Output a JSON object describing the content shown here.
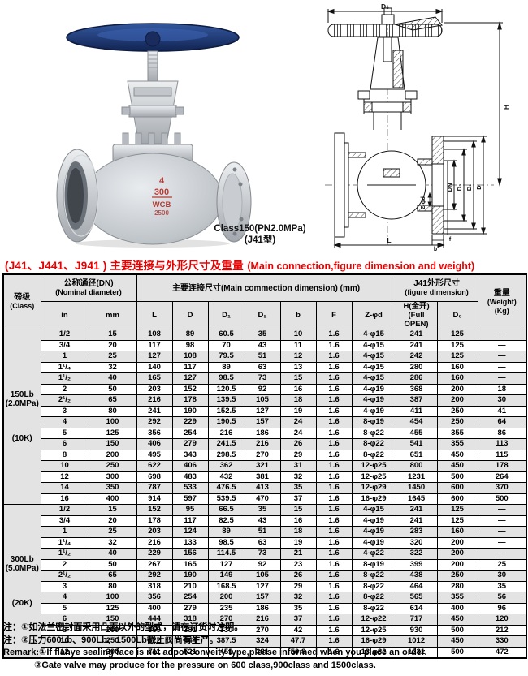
{
  "colors": {
    "title_red": "#e80000",
    "stripe_gray": "#e3e3e3",
    "handwheel_blue": "#1d3a7d",
    "marking_red": "#b93b34"
  },
  "images": {
    "caption_line1": "Class150(PN2.0MPa)",
    "caption_line2": "(J41型)",
    "valve_markings": [
      "4",
      "300",
      "WCB",
      "2500"
    ],
    "drawing_labels": {
      "d0": "D₀",
      "h": "H",
      "l": "L",
      "dn": "DN",
      "d2": "D₂",
      "d1": "D₁",
      "d": "D",
      "zfd": "Z-φd",
      "b": "b",
      "f": "f"
    }
  },
  "title": {
    "cn": "(J41、J441、J941 )  主要连接与外形尺寸及重量",
    "en": "(Main connection,figure dimension and weight)"
  },
  "table": {
    "headers": {
      "class_cn": "磅级",
      "class_en": "(Class)",
      "dn_cn": "公称通径(DN)",
      "dn_en": "(Nominal diameter)",
      "dn_sub": [
        "in",
        "mm"
      ],
      "main": "主要连接尺寸(Main commection dimension) (mm)",
      "main_sub": [
        "L",
        "D",
        "D₁",
        "D₂",
        "b",
        "F",
        "Z-φd"
      ],
      "fig_cn": "J41外形尺寸",
      "fig_en": "(figure dimension)",
      "fig_sub": [
        "H(全开)(Full OPEN)",
        "D₀"
      ],
      "weight": [
        "重量",
        "(Weight)",
        "(Kg)"
      ]
    },
    "sections": [
      {
        "class_lines": [
          "150Lb",
          "(2.0MPa)"
        ],
        "class_label2": "(10K)",
        "rows": [
          [
            "1/2",
            "15",
            "108",
            "89",
            "60.5",
            "35",
            "10",
            "1.6",
            "4-φ15",
            "241",
            "125",
            "—"
          ],
          [
            "3/4",
            "20",
            "117",
            "98",
            "70",
            "43",
            "11",
            "1.6",
            "4-φ15",
            "241",
            "125",
            "—"
          ],
          [
            "1",
            "25",
            "127",
            "108",
            "79.5",
            "51",
            "12",
            "1.6",
            "4-φ15",
            "242",
            "125",
            "—"
          ],
          [
            "1¹/₄",
            "32",
            "140",
            "117",
            "89",
            "63",
            "13",
            "1.6",
            "4-φ15",
            "280",
            "160",
            "—"
          ],
          [
            "1¹/₂",
            "40",
            "165",
            "127",
            "98.5",
            "73",
            "15",
            "1.6",
            "4-φ15",
            "286",
            "160",
            "—"
          ],
          [
            "2",
            "50",
            "203",
            "152",
            "120.5",
            "92",
            "16",
            "1.6",
            "4-φ19",
            "368",
            "200",
            "18"
          ],
          [
            "2¹/₂",
            "65",
            "216",
            "178",
            "139.5",
            "105",
            "18",
            "1.6",
            "4-φ19",
            "387",
            "200",
            "30"
          ],
          [
            "3",
            "80",
            "241",
            "190",
            "152.5",
            "127",
            "19",
            "1.6",
            "4-φ19",
            "411",
            "250",
            "41"
          ],
          [
            "4",
            "100",
            "292",
            "229",
            "190.5",
            "157",
            "24",
            "1.6",
            "8-φ19",
            "454",
            "250",
            "64"
          ],
          [
            "5",
            "125",
            "356",
            "254",
            "216",
            "186",
            "24",
            "1.6",
            "8-φ22",
            "455",
            "355",
            "86"
          ],
          [
            "6",
            "150",
            "406",
            "279",
            "241.5",
            "216",
            "26",
            "1.6",
            "8-φ22",
            "541",
            "355",
            "113"
          ],
          [
            "8",
            "200",
            "495",
            "343",
            "298.5",
            "270",
            "29",
            "1.6",
            "8-φ22",
            "651",
            "450",
            "115"
          ],
          [
            "10",
            "250",
            "622",
            "406",
            "362",
            "321",
            "31",
            "1.6",
            "12-φ25",
            "800",
            "450",
            "178"
          ],
          [
            "12",
            "300",
            "698",
            "483",
            "432",
            "381",
            "32",
            "1.6",
            "12-φ25",
            "1231",
            "500",
            "264"
          ],
          [
            "14",
            "350",
            "787",
            "533",
            "476.5",
            "413",
            "35",
            "1.6",
            "12-φ29",
            "1450",
            "600",
            "370"
          ],
          [
            "16",
            "400",
            "914",
            "597",
            "539.5",
            "470",
            "37",
            "1.6",
            "16-φ29",
            "1645",
            "600",
            "500"
          ]
        ]
      },
      {
        "class_lines": [
          "300Lb",
          "(5.0MPa)"
        ],
        "class_label2": "(20K)",
        "rows": [
          [
            "1/2",
            "15",
            "152",
            "95",
            "66.5",
            "35",
            "15",
            "1.6",
            "4-φ15",
            "241",
            "125",
            "—"
          ],
          [
            "3/4",
            "20",
            "178",
            "117",
            "82.5",
            "43",
            "16",
            "1.6",
            "4-φ19",
            "241",
            "125",
            "—"
          ],
          [
            "1",
            "25",
            "203",
            "124",
            "89",
            "51",
            "18",
            "1.6",
            "4-φ19",
            "283",
            "160",
            "—"
          ],
          [
            "1¹/₄",
            "32",
            "216",
            "133",
            "98.5",
            "63",
            "19",
            "1.6",
            "4-φ19",
            "320",
            "200",
            "—"
          ],
          [
            "1¹/₂",
            "40",
            "229",
            "156",
            "114.5",
            "73",
            "21",
            "1.6",
            "4-φ22",
            "322",
            "200",
            "—"
          ],
          [
            "2",
            "50",
            "267",
            "165",
            "127",
            "92",
            "23",
            "1.6",
            "8-φ19",
            "399",
            "200",
            "25"
          ],
          [
            "2¹/₂",
            "65",
            "292",
            "190",
            "149",
            "105",
            "26",
            "1.6",
            "8-φ22",
            "438",
            "250",
            "30"
          ],
          [
            "3",
            "80",
            "318",
            "210",
            "168.5",
            "127",
            "29",
            "1.6",
            "8-φ22",
            "464",
            "280",
            "35"
          ],
          [
            "4",
            "100",
            "356",
            "254",
            "200",
            "157",
            "32",
            "1.6",
            "8-φ22",
            "565",
            "355",
            "56"
          ],
          [
            "5",
            "125",
            "400",
            "279",
            "235",
            "186",
            "35",
            "1.6",
            "8-φ22",
            "614",
            "400",
            "96"
          ],
          [
            "6",
            "150",
            "444",
            "318",
            "270",
            "216",
            "37",
            "1.6",
            "12-φ22",
            "717",
            "450",
            "120"
          ],
          [
            "8",
            "200",
            "559",
            "381",
            "330",
            "270",
            "42",
            "1.6",
            "12-φ25",
            "930",
            "500",
            "212"
          ],
          [
            "10",
            "250",
            "622",
            "444",
            "387.5",
            "324",
            "47.7",
            "1.6",
            "16-φ29",
            "1012",
            "450",
            "330"
          ],
          [
            "12",
            "300",
            "711",
            "521",
            "451",
            "381",
            "50.8",
            "1.6",
            "13-φ32",
            "1231",
            "500",
            "472"
          ]
        ]
      }
    ]
  },
  "notes": [
    "注：①如法兰密封面采用凸面以外的型式，请在订货时注明。",
    "注：②压力600Lb、900Lb、1500Lb截止阀尚有生产。",
    "Remark:①If flanye sealing face is not adpot conveity type,please informed when you place an order.",
    "②Gate valve may produce for the pressure on 600 class,900class and 1500class."
  ]
}
